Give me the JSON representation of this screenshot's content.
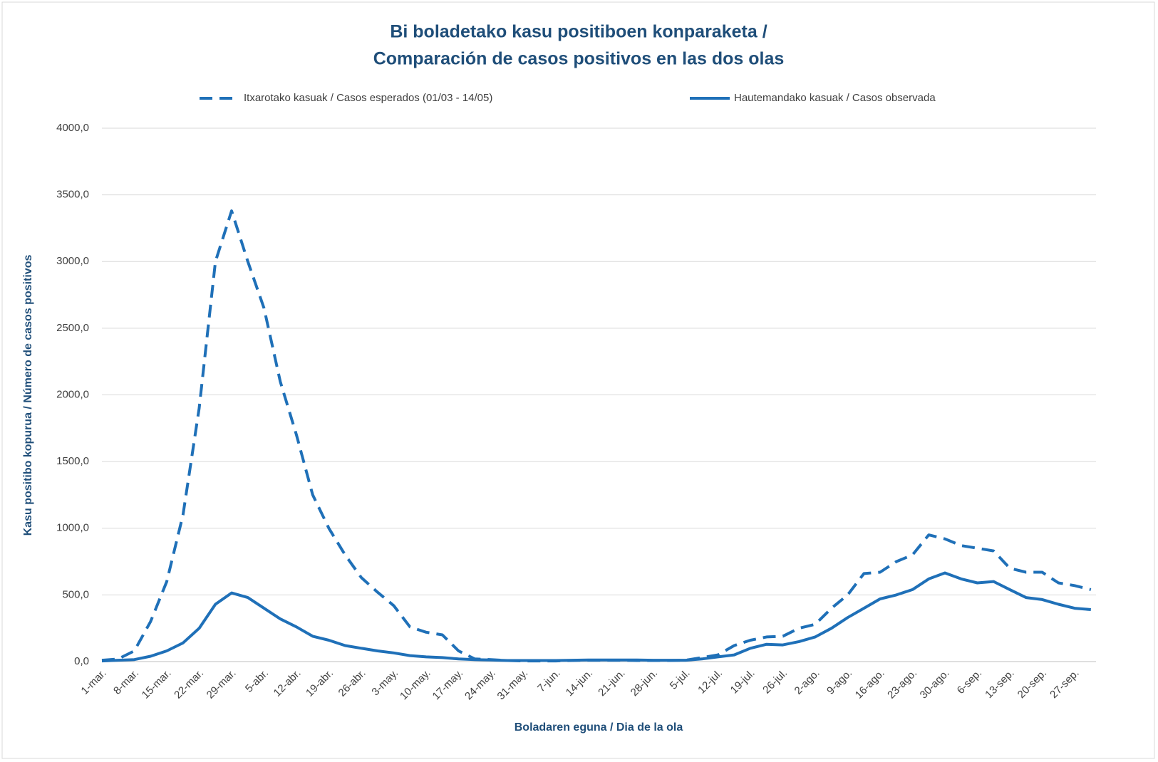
{
  "chart_data": {
    "type": "line",
    "title": [
      "Bi boladetako kasu positiboen konparaketa /",
      "Comparación de casos positivos en las dos olas"
    ],
    "x_label": "Boladaren eguna / Dia de la ola",
    "y_label": "Kasu positibo kopurua / Número de casos positivos",
    "categories": [
      "1-mar.",
      null,
      "8-mar.",
      null,
      "15-mar.",
      null,
      "22-mar.",
      null,
      "29-mar.",
      null,
      "5-abr.",
      null,
      "12-abr.",
      null,
      "19-abr.",
      null,
      "26-abr.",
      null,
      "3-may.",
      null,
      "10-may.",
      null,
      "17-may.",
      null,
      "24-may.",
      null,
      "31-may.",
      null,
      "7-jun.",
      null,
      "14-jun.",
      null,
      "21-jun.",
      null,
      "28-jun.",
      null,
      "5-jul.",
      null,
      "12-jul.",
      null,
      "19-jul.",
      null,
      "26-jul.",
      null,
      "2-ago.",
      null,
      "9-ago.",
      null,
      "16-ago.",
      null,
      "23-ago.",
      null,
      "30-ago.",
      null,
      "6-sep.",
      null,
      "13-sep.",
      null,
      "20-sep.",
      null,
      "27-sep.",
      null
    ],
    "series": [
      {
        "name": "Itxarotako kasuak / Casos esperados (01/03 - 14/05)",
        "color": "#1f70b8",
        "dashed": true,
        "values": [
          10,
          20,
          80,
          300,
          600,
          1100,
          1900,
          3000,
          3380,
          3000,
          2650,
          2100,
          1700,
          1250,
          1000,
          800,
          630,
          520,
          420,
          260,
          220,
          200,
          80,
          20,
          15,
          8,
          5,
          5,
          5,
          8,
          10,
          10,
          10,
          8,
          8,
          8,
          10,
          30,
          50,
          120,
          160,
          185,
          190,
          250,
          280,
          400,
          500,
          660,
          670,
          750,
          800,
          950,
          920,
          870,
          850,
          830,
          700,
          670,
          670,
          590,
          570,
          540
        ]
      },
      {
        "name": "Hautemandako kasuak / Casos observada",
        "color": "#1f70b8",
        "dashed": false,
        "values": [
          5,
          10,
          15,
          40,
          80,
          140,
          250,
          430,
          515,
          480,
          400,
          320,
          260,
          190,
          160,
          120,
          100,
          80,
          65,
          45,
          35,
          30,
          20,
          15,
          12,
          8,
          8,
          8,
          8,
          10,
          12,
          12,
          12,
          12,
          10,
          10,
          10,
          20,
          35,
          50,
          100,
          130,
          125,
          150,
          185,
          250,
          330,
          400,
          470,
          500,
          540,
          620,
          665,
          620,
          590,
          600,
          540,
          480,
          465,
          430,
          400,
          390
        ]
      }
    ],
    "ylim": [
      0,
      4000
    ],
    "yticks": [
      {
        "value": 0,
        "label": "0,0"
      },
      {
        "value": 500,
        "label": "500,0"
      },
      {
        "value": 1000,
        "label": "1000,0"
      },
      {
        "value": 1500,
        "label": "1500,0"
      },
      {
        "value": 2000,
        "label": "2000,0"
      },
      {
        "value": 2500,
        "label": "2500,0"
      },
      {
        "value": 3000,
        "label": "3000,0"
      },
      {
        "value": 3500,
        "label": "3500,0"
      },
      {
        "value": 4000,
        "label": "4000,0"
      }
    ],
    "grid": true,
    "legend": "top"
  }
}
